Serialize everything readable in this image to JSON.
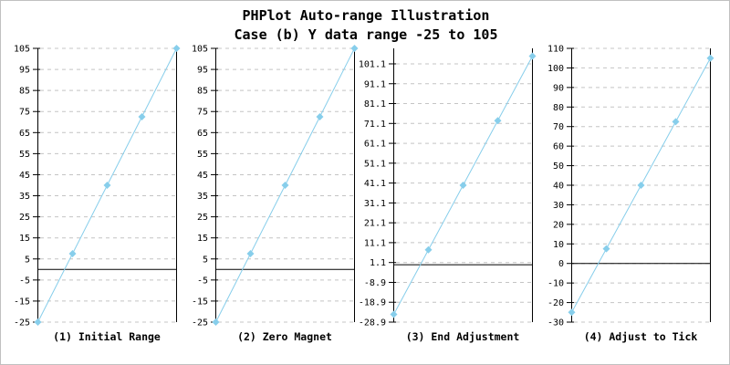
{
  "title": {
    "line1": "PHPlot Auto-range Illustration",
    "line2": "Case (b) Y data range -25 to 105"
  },
  "colors": {
    "data_line": "#87CEEB",
    "marker_fill": "#87CEEB",
    "grid": "#C4C4C4",
    "axis": "#000000",
    "zero_line": "#000000",
    "text": "#000000",
    "background": "#FFFFFF",
    "image_border": "#C0C0C0"
  },
  "chart_data": [
    {
      "type": "line",
      "title": "(1) Initial Range",
      "x": [
        0,
        1,
        2,
        3,
        4
      ],
      "values": [
        -25,
        7.5,
        40,
        72.5,
        105
      ],
      "ylim": [
        -25,
        105
      ],
      "yticks": [
        -25,
        -15,
        -5,
        5,
        15,
        25,
        35,
        45,
        55,
        65,
        75,
        85,
        95,
        105
      ],
      "zero_line": 0,
      "xlabel": "",
      "ylabel": "",
      "grid": "horizontal-dashed",
      "marker": "diamond",
      "legend_position": "none"
    },
    {
      "type": "line",
      "title": "(2) Zero Magnet",
      "x": [
        0,
        1,
        2,
        3,
        4
      ],
      "values": [
        -25,
        7.5,
        40,
        72.5,
        105
      ],
      "ylim": [
        -25,
        105
      ],
      "yticks": [
        -25,
        -15,
        -5,
        5,
        15,
        25,
        35,
        45,
        55,
        65,
        75,
        85,
        95,
        105
      ],
      "zero_line": 0,
      "xlabel": "",
      "ylabel": "",
      "grid": "horizontal-dashed",
      "marker": "diamond",
      "legend_position": "none"
    },
    {
      "type": "line",
      "title": "(3) End Adjustment",
      "x": [
        0,
        1,
        2,
        3,
        4
      ],
      "values": [
        -25,
        7.5,
        40,
        72.5,
        105
      ],
      "ylim": [
        -28.9,
        108.9
      ],
      "yticks": [
        -28.9,
        -18.9,
        -8.9,
        1.1,
        11.1,
        21.1,
        31.1,
        41.1,
        51.1,
        61.1,
        71.1,
        81.1,
        91.1,
        101.1
      ],
      "zero_line": 0,
      "xlabel": "",
      "ylabel": "",
      "grid": "horizontal-dashed",
      "marker": "diamond",
      "legend_position": "none"
    },
    {
      "type": "line",
      "title": "(4) Adjust to Tick",
      "x": [
        0,
        1,
        2,
        3,
        4
      ],
      "values": [
        -25,
        7.5,
        40,
        72.5,
        105
      ],
      "ylim": [
        -30,
        110
      ],
      "yticks": [
        -30,
        -20,
        -10,
        0,
        10,
        20,
        30,
        40,
        50,
        60,
        70,
        80,
        90,
        100,
        110
      ],
      "zero_line": 0,
      "xlabel": "",
      "ylabel": "",
      "grid": "horizontal-dashed",
      "marker": "diamond",
      "legend_position": "none"
    }
  ]
}
